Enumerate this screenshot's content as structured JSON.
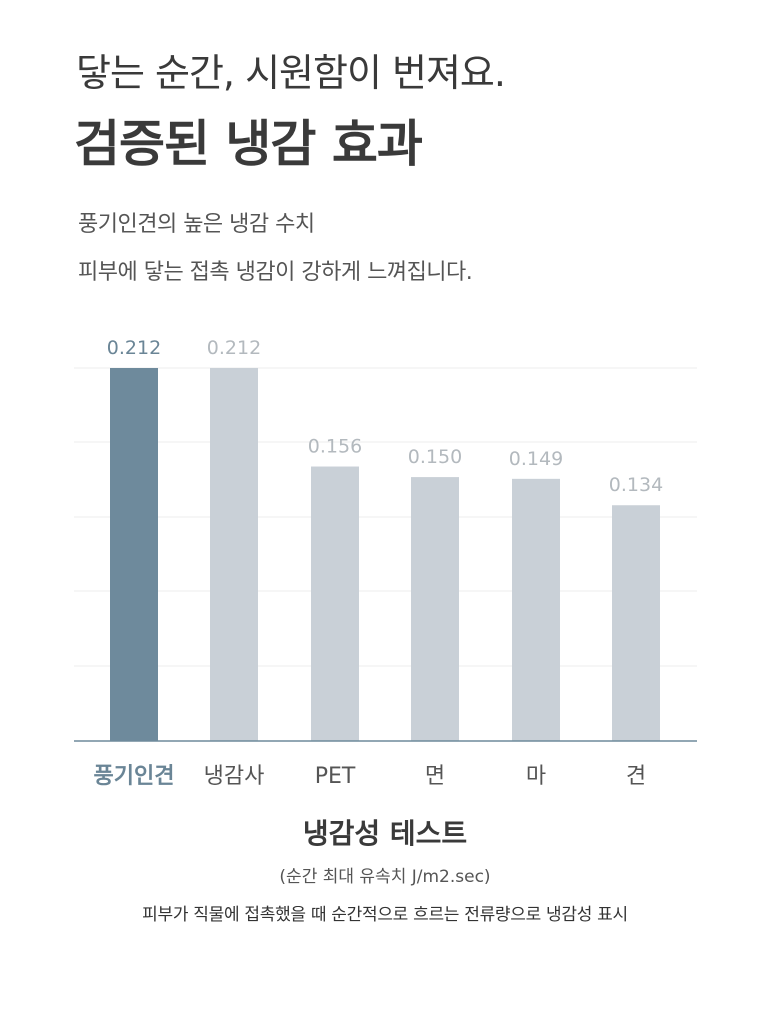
{
  "header": {
    "line1": "닿는 순간, 시원함이 번져요.",
    "line2": "검증된 냉감 효과"
  },
  "description": {
    "line1": "풍기인견의 높은 냉감 수치",
    "line2": "피부에 닿는 접촉 냉감이 강하게 느껴집니다."
  },
  "colors": {
    "highlight_bar": "#6e8a9c",
    "other_bar": "#c9d0d7",
    "highlight_label": "#6a8596",
    "other_label": "#b3b9be",
    "axis": "#6e8a9c",
    "grid": "#ececec"
  },
  "chart_data": {
    "type": "bar",
    "categories": [
      "풍기인견",
      "냉감사",
      "PET",
      "면",
      "마",
      "견"
    ],
    "values": [
      0.212,
      0.212,
      0.156,
      0.15,
      0.149,
      0.134
    ],
    "value_labels": [
      "0.212",
      "0.212",
      "0.156",
      "0.150",
      "0.149",
      "0.134"
    ],
    "highlight_index": 0,
    "ylim": [
      0,
      0.212
    ],
    "grid": true,
    "legend": "none"
  },
  "caption": {
    "title": "냉감성 테스트",
    "unit": "(순간 최대 유속치 J/m2.sec)",
    "note": "피부가 직물에 접촉했을 때 순간적으로 흐르는 전류량으로 냉감성 표시"
  }
}
